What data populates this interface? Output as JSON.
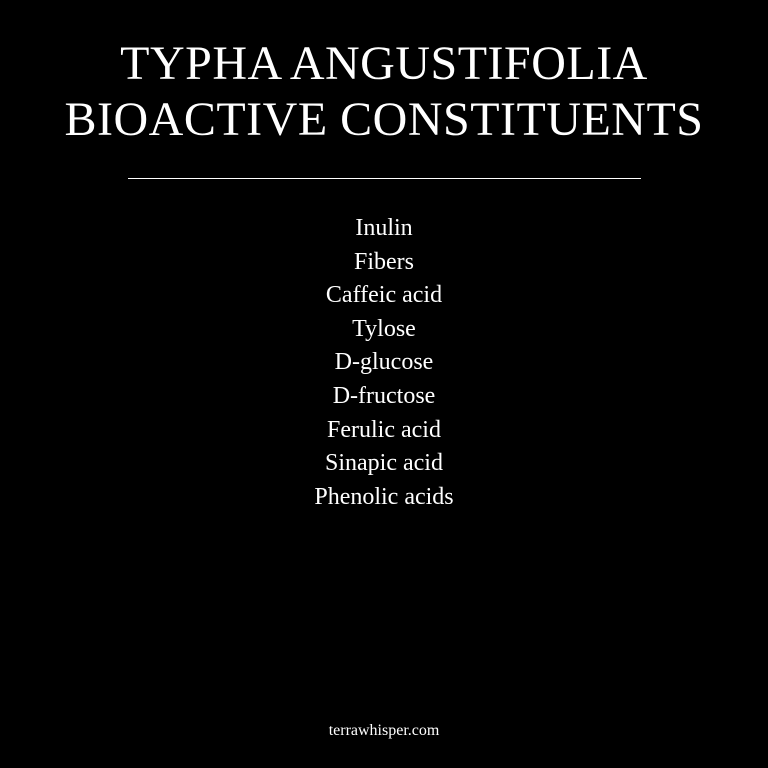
{
  "title": {
    "line1": "TYPHA ANGUSTIFOLIA",
    "line2": "BIOACTIVE CONSTITUENTS"
  },
  "constituents": [
    "Inulin",
    "Fibers",
    "Caffeic acid",
    "Tylose",
    "D-glucose",
    "D-fructose",
    "Ferulic acid",
    "Sinapic acid",
    "Phenolic acids"
  ],
  "footer": {
    "site": "terrawhisper.com"
  },
  "colors": {
    "background": "#000000",
    "text": "#ffffff"
  }
}
